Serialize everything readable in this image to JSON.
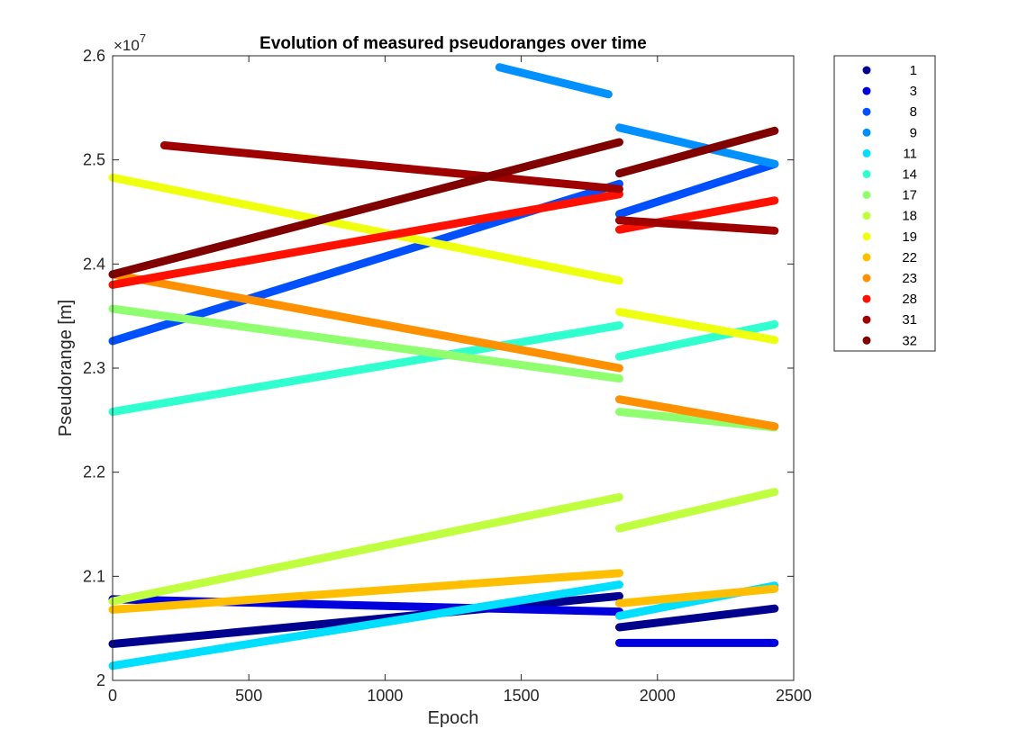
{
  "chart_data": {
    "type": "scatter",
    "title": "Evolution of measured pseudoranges over time",
    "xlabel": "Epoch",
    "ylabel": "Pseudorange [m]",
    "y_multiplier": "×10",
    "y_exponent": "7",
    "xlim": [
      0,
      2500
    ],
    "ylim": [
      2.0,
      2.6
    ],
    "xticks": [
      "0",
      "500",
      "1000",
      "1500",
      "2000",
      "2500"
    ],
    "yticks": [
      "2",
      "2.1",
      "2.2",
      "2.3",
      "2.4",
      "2.5",
      "2.6"
    ],
    "grid": false,
    "legend_position": "outside-right",
    "series": [
      {
        "name": "1",
        "color": "#00008f",
        "segments": [
          [
            [
              0,
              2.035
            ],
            [
              1860,
              2.081
            ]
          ],
          [
            [
              1860,
              2.051
            ],
            [
              2430,
              2.069
            ]
          ]
        ]
      },
      {
        "name": "3",
        "color": "#0000df",
        "segments": [
          [
            [
              0,
              2.078
            ],
            [
              1860,
              2.066
            ]
          ],
          [
            [
              1860,
              2.036
            ],
            [
              2430,
              2.036
            ]
          ]
        ]
      },
      {
        "name": "8",
        "color": "#0050ff",
        "segments": [
          [
            [
              0,
              2.326
            ],
            [
              1860,
              2.477
            ]
          ],
          [
            [
              1860,
              2.448
            ],
            [
              2430,
              2.496
            ]
          ]
        ]
      },
      {
        "name": "9",
        "color": "#0090ff",
        "segments": [
          [
            [
              1420,
              2.589
            ],
            [
              1820,
              2.563
            ]
          ],
          [
            [
              1860,
              2.531
            ],
            [
              2430,
              2.496
            ]
          ]
        ]
      },
      {
        "name": "11",
        "color": "#00dfff",
        "segments": [
          [
            [
              0,
              2.014
            ],
            [
              1860,
              2.092
            ]
          ],
          [
            [
              1860,
              2.062
            ],
            [
              2430,
              2.091
            ]
          ]
        ]
      },
      {
        "name": "14",
        "color": "#30ffcf",
        "segments": [
          [
            [
              0,
              2.258
            ],
            [
              1860,
              2.341
            ]
          ],
          [
            [
              1860,
              2.311
            ],
            [
              2430,
              2.342
            ]
          ]
        ]
      },
      {
        "name": "17",
        "color": "#8fff70",
        "segments": [
          [
            [
              0,
              2.357
            ],
            [
              1860,
              2.29
            ]
          ],
          [
            [
              1860,
              2.258
            ],
            [
              2430,
              2.243
            ]
          ]
        ]
      },
      {
        "name": "18",
        "color": "#bfff40",
        "segments": [
          [
            [
              0,
              2.076
            ],
            [
              1860,
              2.176
            ]
          ],
          [
            [
              1860,
              2.146
            ],
            [
              2430,
              2.181
            ]
          ]
        ]
      },
      {
        "name": "19",
        "color": "#efff10",
        "segments": [
          [
            [
              0,
              2.483
            ],
            [
              1860,
              2.384
            ]
          ],
          [
            [
              1860,
              2.354
            ],
            [
              2430,
              2.327
            ]
          ]
        ]
      },
      {
        "name": "22",
        "color": "#ffbf00",
        "segments": [
          [
            [
              0,
              2.068
            ],
            [
              1860,
              2.103
            ]
          ],
          [
            [
              1860,
              2.074
            ],
            [
              2430,
              2.088
            ]
          ]
        ]
      },
      {
        "name": "23",
        "color": "#ff9000",
        "segments": [
          [
            [
              0,
              2.39
            ],
            [
              1860,
              2.3
            ]
          ],
          [
            [
              1860,
              2.27
            ],
            [
              2430,
              2.244
            ]
          ]
        ]
      },
      {
        "name": "28",
        "color": "#ff1000",
        "segments": [
          [
            [
              0,
              2.38
            ],
            [
              1860,
              2.467
            ]
          ],
          [
            [
              1860,
              2.433
            ],
            [
              2430,
              2.461
            ]
          ]
        ]
      },
      {
        "name": "31",
        "color": "#9f0000",
        "segments": [
          [
            [
              190,
              2.514
            ],
            [
              1860,
              2.472
            ]
          ],
          [
            [
              1860,
              2.442
            ],
            [
              2430,
              2.432
            ]
          ]
        ]
      },
      {
        "name": "32",
        "color": "#800000",
        "segments": [
          [
            [
              0,
              2.39
            ],
            [
              1860,
              2.517
            ]
          ],
          [
            [
              1860,
              2.487
            ],
            [
              2430,
              2.528
            ]
          ]
        ]
      }
    ]
  }
}
